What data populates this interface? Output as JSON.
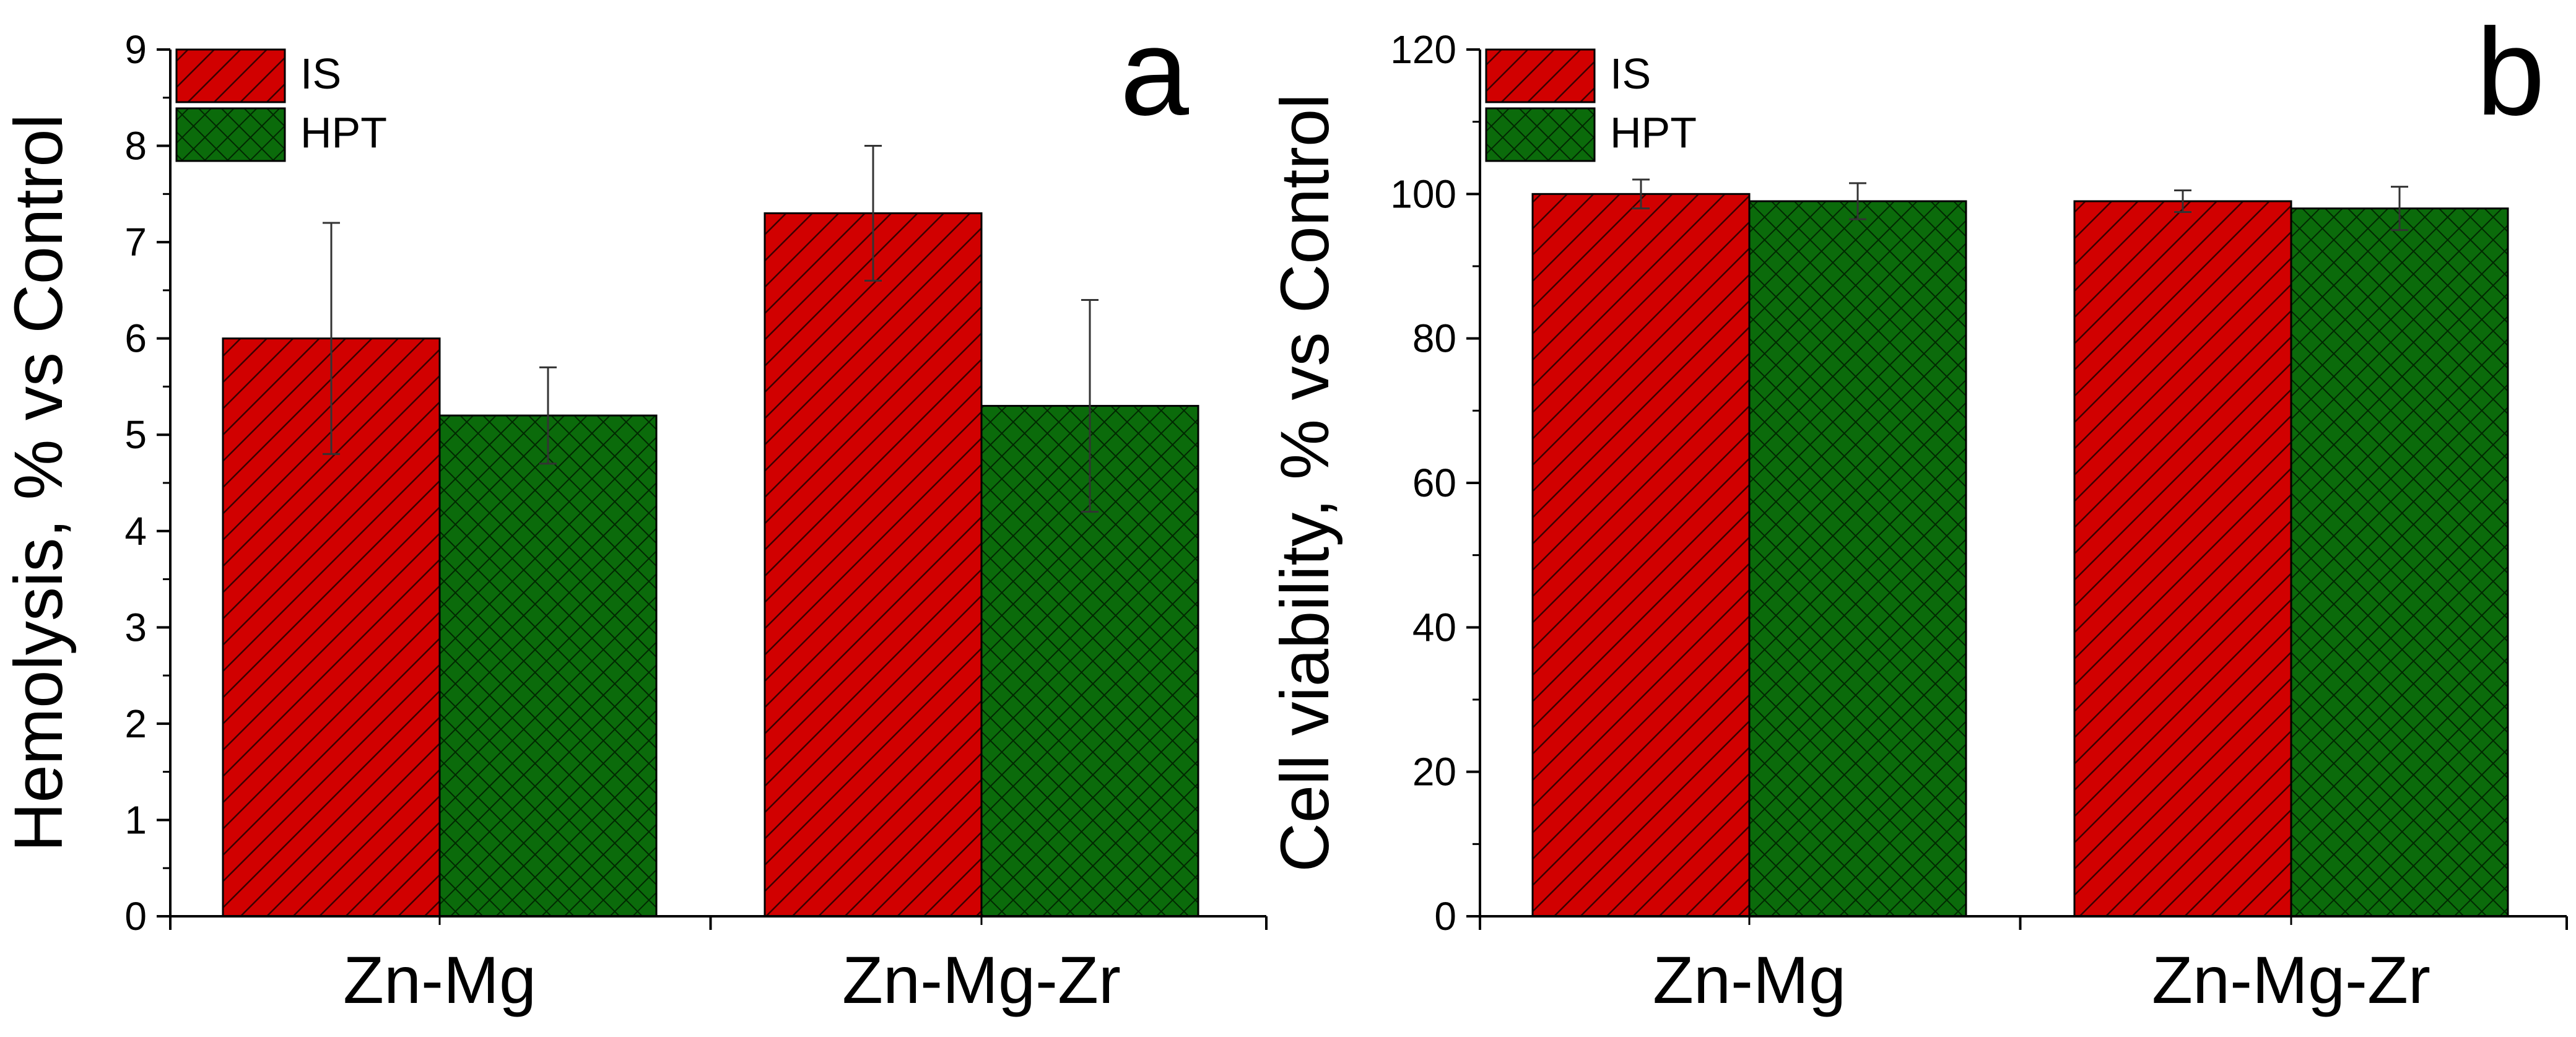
{
  "chart_data": [
    {
      "type": "bar",
      "panel_letter": "a",
      "title": "",
      "xlabel": "",
      "ylabel": "Hemolysis, % vs Control",
      "categories": [
        "Zn-Mg",
        "Zn-Mg-Zr"
      ],
      "ylim": [
        0,
        9
      ],
      "yticks": [
        0,
        1,
        2,
        3,
        4,
        5,
        6,
        7,
        8,
        9
      ],
      "grid": false,
      "legend_position": "top-left",
      "series": [
        {
          "name": "IS",
          "pattern": "diagonal-hatch",
          "color": "#d10000",
          "values": [
            6.0,
            7.3
          ],
          "errors": [
            1.2,
            0.7
          ]
        },
        {
          "name": "HPT",
          "pattern": "cross-hatch",
          "color": "#0b6b0b",
          "values": [
            5.2,
            5.3
          ],
          "errors": [
            0.5,
            1.1
          ]
        }
      ]
    },
    {
      "type": "bar",
      "panel_letter": "b",
      "title": "",
      "xlabel": "",
      "ylabel": "Cell viability, % vs Control",
      "categories": [
        "Zn-Mg",
        "Zn-Mg-Zr"
      ],
      "ylim": [
        0,
        120
      ],
      "yticks": [
        0,
        20,
        40,
        60,
        80,
        100,
        120
      ],
      "grid": false,
      "legend_position": "top-left",
      "series": [
        {
          "name": "IS",
          "pattern": "diagonal-hatch",
          "color": "#d10000",
          "values": [
            100,
            99
          ],
          "errors": [
            2,
            1.5
          ]
        },
        {
          "name": "HPT",
          "pattern": "cross-hatch",
          "color": "#0b6b0b",
          "values": [
            99,
            98
          ],
          "errors": [
            2.5,
            3
          ]
        }
      ]
    }
  ]
}
